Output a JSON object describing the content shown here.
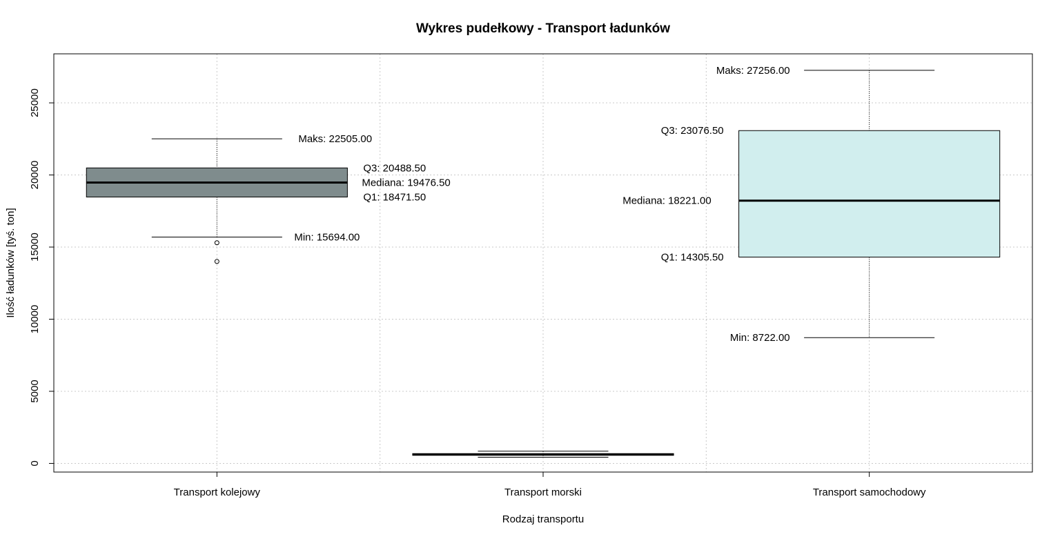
{
  "chart_data": {
    "type": "box",
    "title": "Wykres pudełkowy - Transport ładunków",
    "xlabel": "Rodzaj transportu",
    "ylabel": "Ilość ładunków [tyś. ton]",
    "ylim": [
      -600,
      28400
    ],
    "yticks": [
      0,
      5000,
      10000,
      15000,
      20000,
      25000
    ],
    "ytick_labels": [
      "0",
      "5000",
      "10000",
      "15000",
      "20000",
      "25000"
    ],
    "grid": true,
    "categories": [
      "Transport kolejowy",
      "Transport morski",
      "Transport samochodowy"
    ],
    "boxes": [
      {
        "name": "Transport kolejowy",
        "min": 15694,
        "q1": 18471.5,
        "median": 19476.5,
        "q3": 20488.5,
        "max": 22505,
        "outliers": [
          15300,
          14000
        ],
        "color": "#7f8c8d",
        "annotations": {
          "max": "Maks: 22505.00",
          "q3": "Q3: 20488.50",
          "median": "Mediana: 19476.50",
          "q1": "Q1: 18471.50",
          "min": "Min: 15694.00"
        }
      },
      {
        "name": "Transport morski",
        "min": 430,
        "q1": 560,
        "median": 620,
        "q3": 680,
        "max": 850,
        "outliers": [],
        "color": "#ffffff",
        "annotations": {}
      },
      {
        "name": "Transport samochodowy",
        "min": 8722,
        "q1": 14305.5,
        "median": 18221,
        "q3": 23076.5,
        "max": 27256,
        "outliers": [],
        "color": "#d1eeee",
        "annotations": {
          "max": "Maks: 27256.00",
          "q3": "Q3: 23076.50",
          "median": "Mediana: 18221.00",
          "q1": "Q1: 14305.50",
          "min": "Min: 8722.00"
        }
      }
    ]
  }
}
